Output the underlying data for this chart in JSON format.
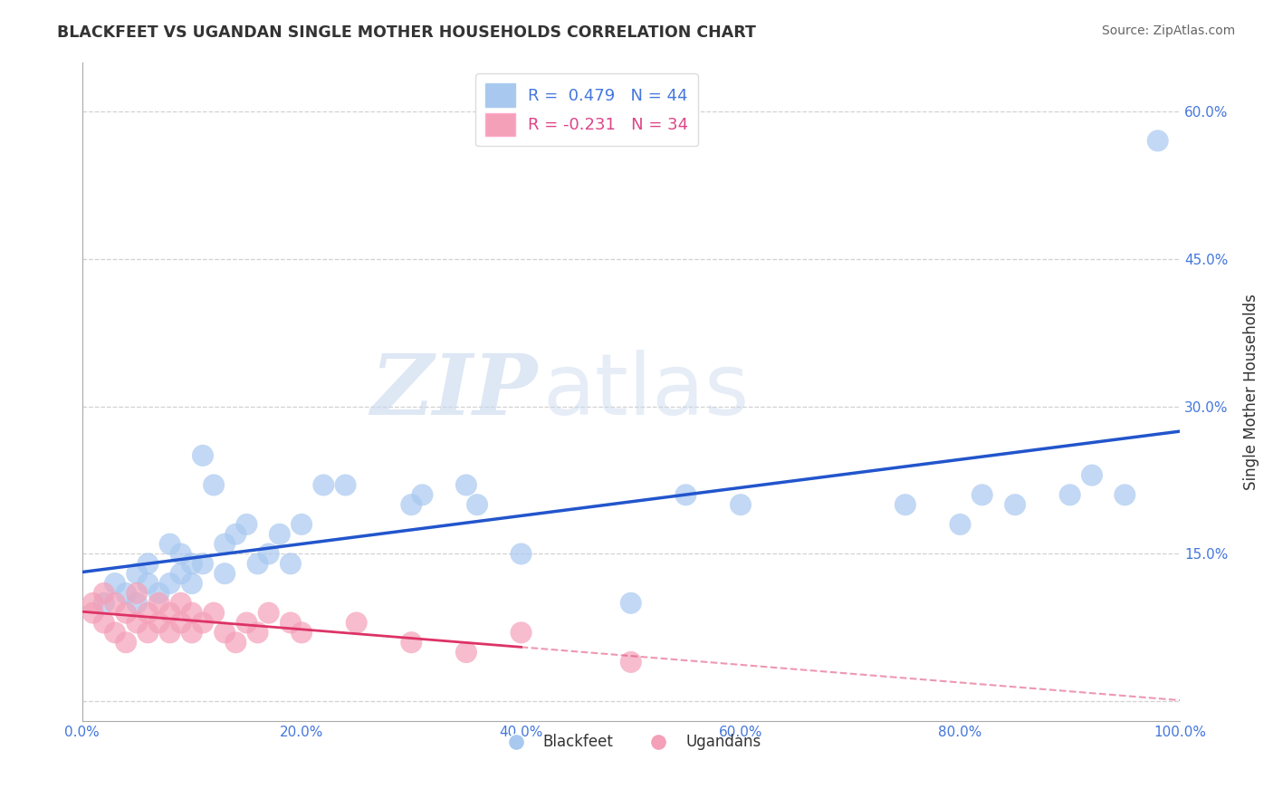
{
  "title": "BLACKFEET VS UGANDAN SINGLE MOTHER HOUSEHOLDS CORRELATION CHART",
  "source": "Source: ZipAtlas.com",
  "ylabel": "Single Mother Households",
  "xlim": [
    0.0,
    1.0
  ],
  "ylim": [
    -0.02,
    0.65
  ],
  "xticks": [
    0.0,
    0.2,
    0.4,
    0.6,
    0.8,
    1.0
  ],
  "xticklabels": [
    "0.0%",
    "20.0%",
    "40.0%",
    "60.0%",
    "80.0%",
    "100.0%"
  ],
  "yticks": [
    0.0,
    0.15,
    0.3,
    0.45,
    0.6
  ],
  "yticklabels": [
    "",
    "15.0%",
    "30.0%",
    "45.0%",
    "60.0%"
  ],
  "grid_color": "#cccccc",
  "background_color": "#ffffff",
  "watermark_zip": "ZIP",
  "watermark_atlas": "atlas",
  "legend_r1": "R =  0.479   N = 44",
  "legend_r2": "R = -0.231   N = 34",
  "blue_color": "#a8c8f0",
  "pink_color": "#f4a0b8",
  "blue_line_color": "#2255cc",
  "pink_line_color": "#dd3366",
  "blue_text_color": "#4477dd",
  "pink_text_color": "#dd4488",
  "blackfeet_x": [
    0.02,
    0.03,
    0.04,
    0.05,
    0.05,
    0.06,
    0.06,
    0.07,
    0.08,
    0.08,
    0.09,
    0.09,
    0.1,
    0.1,
    0.11,
    0.11,
    0.12,
    0.13,
    0.13,
    0.14,
    0.15,
    0.16,
    0.17,
    0.18,
    0.19,
    0.2,
    0.22,
    0.24,
    0.3,
    0.31,
    0.35,
    0.36,
    0.4,
    0.5,
    0.55,
    0.6,
    0.75,
    0.8,
    0.82,
    0.85,
    0.9,
    0.92,
    0.95,
    0.98
  ],
  "blackfeet_y": [
    0.1,
    0.12,
    0.11,
    0.13,
    0.1,
    0.14,
    0.12,
    0.11,
    0.16,
    0.12,
    0.15,
    0.13,
    0.14,
    0.12,
    0.25,
    0.14,
    0.22,
    0.16,
    0.13,
    0.17,
    0.18,
    0.14,
    0.15,
    0.17,
    0.14,
    0.18,
    0.22,
    0.22,
    0.2,
    0.21,
    0.22,
    0.2,
    0.15,
    0.1,
    0.21,
    0.2,
    0.2,
    0.18,
    0.21,
    0.2,
    0.21,
    0.23,
    0.21,
    0.57
  ],
  "ugandan_x": [
    0.01,
    0.01,
    0.02,
    0.02,
    0.03,
    0.03,
    0.04,
    0.04,
    0.05,
    0.05,
    0.06,
    0.06,
    0.07,
    0.07,
    0.08,
    0.08,
    0.09,
    0.09,
    0.1,
    0.1,
    0.11,
    0.12,
    0.13,
    0.14,
    0.15,
    0.16,
    0.17,
    0.19,
    0.2,
    0.25,
    0.3,
    0.35,
    0.4,
    0.5
  ],
  "ugandan_y": [
    0.1,
    0.09,
    0.11,
    0.08,
    0.1,
    0.07,
    0.09,
    0.06,
    0.08,
    0.11,
    0.09,
    0.07,
    0.1,
    0.08,
    0.09,
    0.07,
    0.1,
    0.08,
    0.09,
    0.07,
    0.08,
    0.09,
    0.07,
    0.06,
    0.08,
    0.07,
    0.09,
    0.08,
    0.07,
    0.08,
    0.06,
    0.05,
    0.07,
    0.04
  ]
}
